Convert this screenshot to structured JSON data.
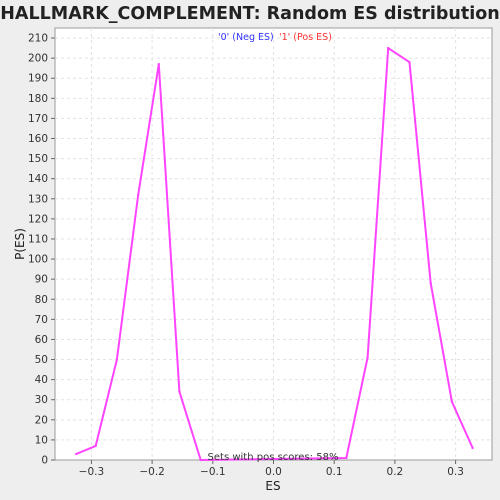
{
  "chart_data": {
    "type": "line",
    "title": "HALLMARK_COMPLEMENT: Random ES distribution",
    "xlabel": "ES",
    "ylabel": "P(ES)",
    "xlim": [
      -0.36,
      0.36
    ],
    "ylim": [
      0,
      215
    ],
    "x_ticks": [
      -0.3,
      -0.2,
      -0.1,
      0.0,
      0.1,
      0.2,
      0.3
    ],
    "x_tick_labels": [
      "−0.3",
      "−0.2",
      "−0.1",
      "0.0",
      "0.1",
      "0.2",
      "0.3"
    ],
    "y_ticks": [
      0,
      10,
      20,
      30,
      40,
      50,
      60,
      70,
      80,
      90,
      100,
      110,
      120,
      130,
      140,
      150,
      160,
      170,
      180,
      190,
      200,
      210
    ],
    "grid": true,
    "legend": [
      {
        "label": "'0' (Neg ES)",
        "color": "#3333ff"
      },
      {
        "label": "'1' (Pos ES)",
        "color": "#ff3333"
      }
    ],
    "legend_position": "top-center",
    "annotation": "Sets with pos scores: 58%",
    "series": [
      {
        "color": "#ff44ff",
        "x": [
          -0.325,
          -0.293,
          -0.258,
          -0.223,
          -0.189,
          -0.155,
          -0.12,
          0.12,
          0.155,
          0.189,
          0.224,
          0.259,
          0.294,
          0.328
        ],
        "y": [
          3,
          7,
          50,
          132,
          197,
          34,
          0,
          1,
          51,
          205,
          198,
          88,
          29,
          6
        ]
      }
    ]
  }
}
